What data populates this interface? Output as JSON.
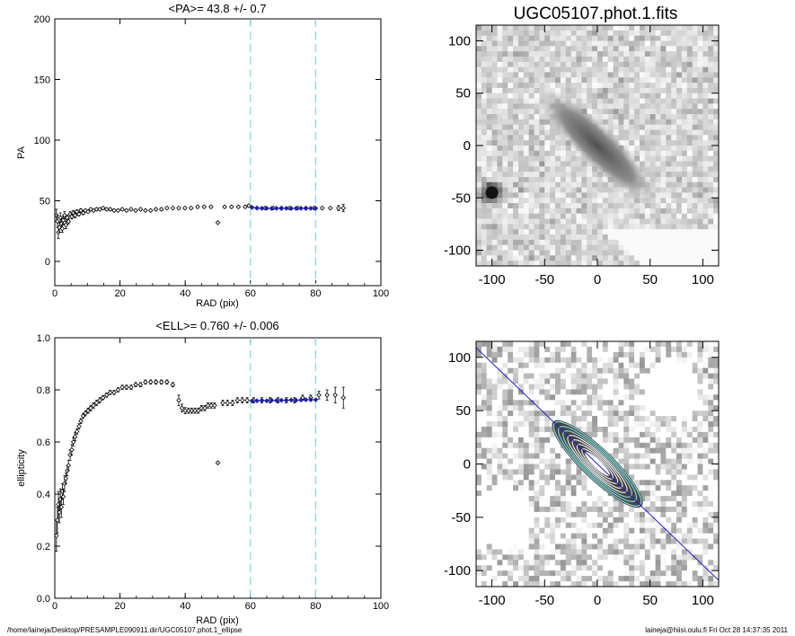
{
  "colors": {
    "profile_fit": "#1f1fa8",
    "range_line": "#7fdada",
    "fit_line": "#2222cc"
  },
  "footer": {
    "left": "/home/laineja/Desktop/PRESAMPLE090911.dir/UGC05107.phot.1_ellipse",
    "right": "laineja@hiisi.oulu.fi  Fri Oct 28 14:37:35 2011"
  },
  "chart_data": [
    {
      "type": "scatter",
      "title": "<PA>=  43.8 +/-   0.7",
      "xlabel": "RAD (pix)",
      "ylabel": "PA",
      "xlim": [
        0,
        100
      ],
      "ylim": [
        -20,
        200
      ],
      "xticks": [
        "0",
        "20",
        "40",
        "60",
        "80",
        "100"
      ],
      "yticks": [
        "0",
        "50",
        "100",
        "150",
        "200"
      ],
      "fit_range": [
        60,
        80
      ],
      "series": [
        {
          "role": "data",
          "x": [
            0.5,
            0.8,
            1.1,
            1.4,
            1.7,
            2.0,
            2.3,
            2.6,
            3.0,
            3.4,
            3.8,
            4.2,
            4.7,
            5.2,
            5.7,
            6.2,
            6.8,
            7.4,
            8.0,
            8.7,
            9.4,
            10.2,
            11.0,
            11.9,
            12.8,
            13.8,
            14.8,
            15.9,
            17.0,
            18.2,
            19.4,
            20.7,
            22.0,
            23.4,
            24.8,
            26.3,
            27.8,
            29.4,
            31.0,
            32.7,
            34.4,
            36.2,
            38.0,
            39.9,
            41.8,
            43.8,
            45.8,
            47.9,
            50.0,
            52.1,
            54.2,
            56.3,
            58.4,
            59.5,
            62.0,
            64.5,
            67.0,
            69.5,
            72.0,
            74.5,
            77.0,
            79.5,
            82.0,
            84.5,
            87.0,
            88.5
          ],
          "y": [
            38,
            33,
            24,
            28,
            36,
            31,
            27,
            34,
            38,
            30,
            36,
            33,
            39,
            37,
            40,
            38,
            41,
            39,
            42,
            40,
            42,
            41,
            43,
            42,
            43,
            43,
            44,
            43,
            43,
            42,
            42,
            43,
            42,
            43,
            42,
            43,
            42,
            42,
            43,
            43,
            44,
            44,
            44,
            44,
            44,
            45,
            45,
            45,
            32,
            45,
            45,
            45,
            45,
            46,
            44,
            44,
            44,
            44,
            44,
            44,
            44,
            44,
            44,
            44,
            44,
            44
          ],
          "err": [
            5,
            5,
            5,
            4,
            4,
            4,
            3,
            3,
            3,
            3,
            2,
            2,
            2,
            2,
            2,
            2,
            1.5,
            1.5,
            1.5,
            1.5,
            1,
            1,
            1,
            1,
            1,
            1,
            1,
            1,
            1,
            1,
            1,
            1,
            1,
            1,
            1,
            1,
            1,
            1,
            1,
            1,
            1,
            1,
            1,
            1,
            1,
            1,
            1,
            1,
            1,
            1,
            1,
            1,
            1,
            1,
            1,
            1,
            1,
            1,
            1,
            1,
            1,
            1,
            1,
            1,
            2,
            3
          ]
        },
        {
          "role": "fit",
          "x": [
            60.5,
            62.0,
            63.5,
            65.0,
            66.5,
            68.0,
            69.5,
            71.0,
            72.5,
            74.0,
            75.5,
            77.0,
            78.5,
            80.0
          ],
          "y": [
            44.5,
            44,
            43.8,
            43.8,
            43.7,
            43.8,
            43.6,
            43.8,
            43.7,
            43.8,
            43.8,
            43.6,
            43.8,
            43.8
          ]
        }
      ]
    },
    {
      "type": "scatter",
      "title": "<ELL>= 0.760 +/-  0.006",
      "xlabel": "RAD (pix)",
      "ylabel": "ellipticity",
      "xlim": [
        0,
        100
      ],
      "ylim": [
        0.0,
        1.0
      ],
      "xticks": [
        "0",
        "20",
        "40",
        "60",
        "80",
        "100"
      ],
      "yticks": [
        "0.0",
        "0.2",
        "0.4",
        "0.6",
        "0.8",
        "1.0"
      ],
      "fit_range": [
        60,
        80
      ],
      "series": [
        {
          "role": "data",
          "x": [
            0.5,
            0.8,
            1.1,
            1.4,
            1.7,
            2.0,
            2.3,
            2.6,
            3.0,
            3.4,
            3.8,
            4.2,
            4.7,
            5.2,
            5.7,
            6.2,
            6.8,
            7.4,
            8.0,
            8.7,
            9.4,
            10.2,
            11.0,
            11.9,
            12.8,
            13.8,
            14.8,
            15.9,
            17.0,
            18.2,
            19.4,
            20.7,
            22.0,
            23.4,
            24.8,
            26.3,
            27.8,
            29.4,
            31.0,
            32.7,
            34.4,
            36.2,
            38.0,
            39.0,
            40.0,
            41.0,
            42.0,
            43.0,
            44.0,
            45.0,
            46.0,
            47.0,
            48.0,
            49.0,
            50.0,
            51.5,
            53.0,
            54.5,
            56.0,
            57.5,
            59.0,
            61.0,
            63.5,
            66.0,
            68.5,
            71.0,
            73.5,
            76.0,
            78.5,
            81.0,
            83.5,
            86.0,
            88.5
          ],
          "y": [
            0.24,
            0.3,
            0.36,
            0.33,
            0.38,
            0.35,
            0.41,
            0.39,
            0.44,
            0.46,
            0.49,
            0.51,
            0.55,
            0.57,
            0.6,
            0.62,
            0.64,
            0.66,
            0.68,
            0.7,
            0.71,
            0.72,
            0.73,
            0.74,
            0.75,
            0.76,
            0.77,
            0.78,
            0.79,
            0.79,
            0.8,
            0.81,
            0.81,
            0.81,
            0.82,
            0.82,
            0.83,
            0.83,
            0.83,
            0.83,
            0.83,
            0.82,
            0.76,
            0.73,
            0.72,
            0.72,
            0.72,
            0.72,
            0.72,
            0.73,
            0.73,
            0.74,
            0.74,
            0.74,
            0.52,
            0.75,
            0.75,
            0.75,
            0.76,
            0.76,
            0.76,
            0.76,
            0.76,
            0.76,
            0.76,
            0.76,
            0.76,
            0.77,
            0.77,
            0.78,
            0.78,
            0.78,
            0.77
          ],
          "err": [
            0.06,
            0.05,
            0.05,
            0.04,
            0.04,
            0.04,
            0.03,
            0.03,
            0.03,
            0.02,
            0.02,
            0.02,
            0.02,
            0.02,
            0.015,
            0.015,
            0.01,
            0.01,
            0.01,
            0.01,
            0.01,
            0.01,
            0.01,
            0.01,
            0.01,
            0.01,
            0.008,
            0.008,
            0.008,
            0.008,
            0.008,
            0.008,
            0.008,
            0.008,
            0.008,
            0.008,
            0.008,
            0.008,
            0.008,
            0.008,
            0.008,
            0.008,
            0.02,
            0.015,
            0.012,
            0.01,
            0.01,
            0.01,
            0.01,
            0.01,
            0.01,
            0.01,
            0.01,
            0.01,
            0.005,
            0.01,
            0.01,
            0.01,
            0.01,
            0.01,
            0.01,
            0.01,
            0.01,
            0.01,
            0.01,
            0.01,
            0.01,
            0.01,
            0.01,
            0.015,
            0.02,
            0.03,
            0.04
          ]
        },
        {
          "role": "fit",
          "x": [
            60.5,
            62.0,
            63.5,
            65.0,
            66.5,
            68.0,
            69.5,
            71.0,
            72.5,
            74.0,
            75.5,
            77.0,
            78.5,
            80.0
          ],
          "y": [
            0.758,
            0.758,
            0.759,
            0.758,
            0.76,
            0.759,
            0.76,
            0.76,
            0.761,
            0.76,
            0.761,
            0.762,
            0.762,
            0.762
          ]
        }
      ]
    },
    {
      "type": "heatmap",
      "title": "UGC05107.phot.1.fits",
      "xlim": [
        -115,
        115
      ],
      "ylim": [
        -115,
        115
      ],
      "xticks": [
        "-100",
        "-50",
        "0",
        "50",
        "100"
      ],
      "yticks": [
        "-100",
        "-50",
        "0",
        "50",
        "100"
      ],
      "galaxy": {
        "pa_deg": 43.8,
        "ellipticity": 0.76,
        "center": [
          0,
          0
        ]
      }
    },
    {
      "type": "heatmap",
      "xlim": [
        -115,
        115
      ],
      "ylim": [
        -115,
        115
      ],
      "xticks": [
        "-100",
        "-50",
        "0",
        "50",
        "100"
      ],
      "yticks": [
        "-100",
        "-50",
        "0",
        "50",
        "100"
      ],
      "galaxy": {
        "pa_deg": 43.8,
        "ellipticity": 0.76,
        "center": [
          0,
          0
        ]
      },
      "isophote_semimajor": [
        8,
        14,
        20,
        26,
        32,
        38,
        44,
        50,
        56
      ]
    }
  ]
}
